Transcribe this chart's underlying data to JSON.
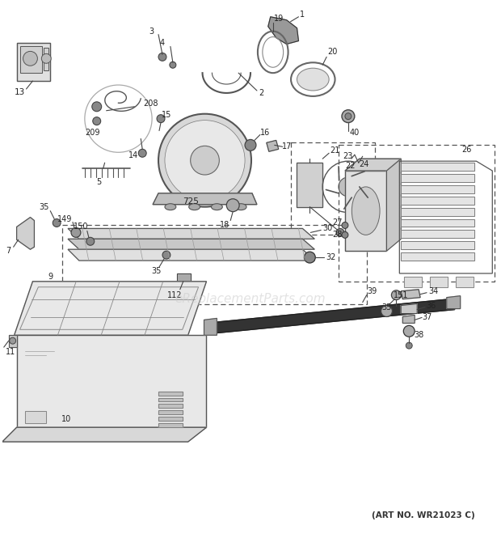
{
  "art_no": "(ART NO. WR21023 C)",
  "bg_color": "#ffffff",
  "watermark": "eReplacementParts.com",
  "fig_width": 6.2,
  "fig_height": 6.6,
  "dpi": 100
}
